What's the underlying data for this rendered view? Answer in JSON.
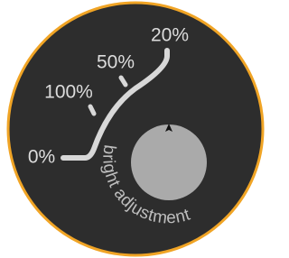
{
  "scale_labels": [
    "0%",
    "100%",
    "50%",
    "20%"
  ],
  "knob_label": "bright adjustment"
}
